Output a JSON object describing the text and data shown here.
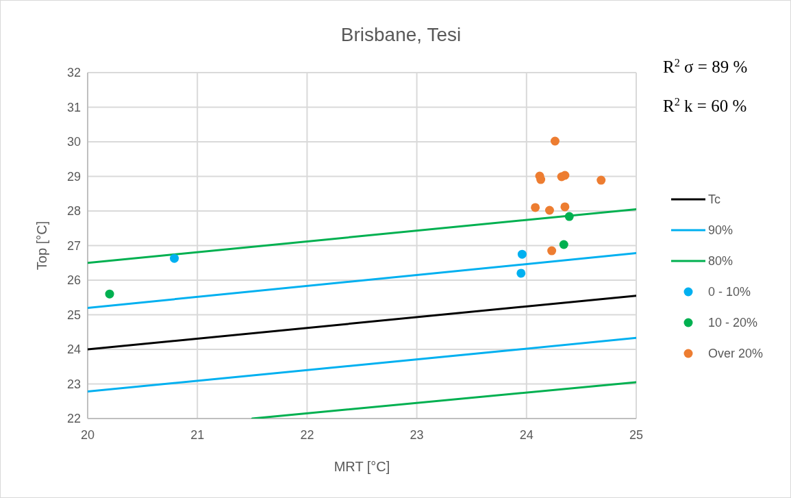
{
  "chart_data": {
    "type": "scatter",
    "title": "Brisbane, Tesi",
    "xlabel": "MRT [°C]",
    "ylabel": "Top [°C]",
    "xlim": [
      20,
      25
    ],
    "xticks": [
      20,
      21,
      22,
      23,
      24,
      25
    ],
    "ylim": [
      22,
      32
    ],
    "yticks": [
      22,
      23,
      24,
      25,
      26,
      27,
      28,
      29,
      30,
      31,
      32
    ],
    "grid": true,
    "legend": "right",
    "annotations": [
      "R$^{2}$ σ = 89 %",
      "R$^{2}$ k = 60 %"
    ],
    "series": [
      {
        "name": "Tc",
        "type": "line",
        "color": "#000000",
        "x": [
          20,
          25
        ],
        "values": [
          24.0,
          25.55
        ]
      },
      {
        "name": "90%",
        "type": "line",
        "color": "#00b0f0",
        "x": [
          20,
          25
        ],
        "values": [
          25.2,
          26.78
        ]
      },
      {
        "type": "line",
        "color": "#00b0f0",
        "x": [
          20,
          25
        ],
        "values": [
          22.78,
          24.33
        ]
      },
      {
        "name": "80%",
        "type": "line",
        "color": "#00b050",
        "x": [
          20,
          25
        ],
        "values": [
          26.5,
          28.05
        ]
      },
      {
        "type": "line",
        "color": "#00b050",
        "x": [
          21.5,
          25
        ],
        "values": [
          22.0,
          23.05
        ]
      },
      {
        "name": "0 - 10%",
        "marker": "circle",
        "color": "#00b0f0",
        "x": [
          20.79,
          23.96,
          23.95
        ],
        "values": [
          26.63,
          26.75,
          26.2
        ]
      },
      {
        "name": "10 - 20%",
        "marker": "circle",
        "color": "#00b050",
        "x": [
          20.2,
          24.34,
          24.39
        ],
        "values": [
          25.6,
          27.03,
          27.84
        ]
      },
      {
        "name": "Over 20%",
        "marker": "circle",
        "color": "#ed7d31",
        "x": [
          24.26,
          24.12,
          24.13,
          24.32,
          24.35,
          24.68,
          24.08,
          24.21,
          24.35,
          24.23
        ],
        "values": [
          30.02,
          29.01,
          28.91,
          28.99,
          29.03,
          28.89,
          28.1,
          28.02,
          28.12,
          26.85
        ]
      }
    ]
  }
}
